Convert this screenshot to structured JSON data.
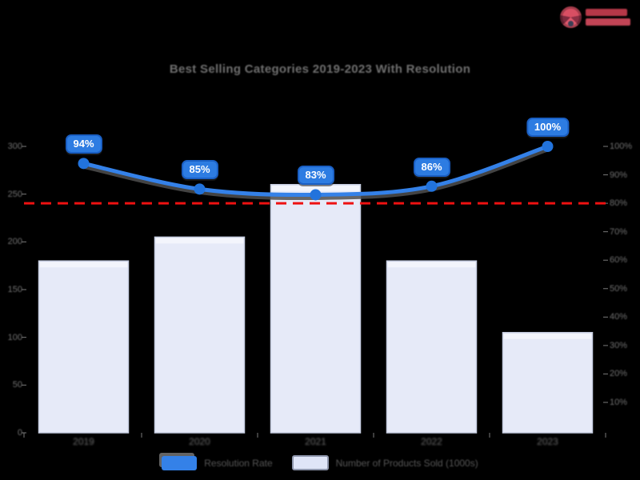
{
  "colors": {
    "background": "#000000",
    "line_blue": "#3481e8",
    "marker_blue": "#2273dc",
    "badge_fill": "#2d7ce2",
    "badge_border": "#1a5fc4",
    "bar_fill": "#e6eaf8",
    "bar_border": "#c6cde1",
    "target_red": "#ee1111",
    "muted_text": "#6f6f6f",
    "logo_red": "#b63848"
  },
  "logo": {
    "accent": "#d94f63"
  },
  "chart_data": {
    "type": "bar+line",
    "title": "Best Selling Categories 2019-2023 With Resolution",
    "categories": [
      "2019",
      "2020",
      "2021",
      "2022",
      "2023"
    ],
    "series": [
      {
        "name": "Resolution Rate",
        "chart": "line",
        "axis": "right",
        "values": [
          94,
          85,
          83,
          86,
          100
        ],
        "point_labels": [
          "94%",
          "85%",
          "83%",
          "86%",
          "100%"
        ],
        "color": "#3481e8"
      },
      {
        "name": "Number of Products Sold (1000s)",
        "chart": "bar",
        "axis": "left",
        "values": [
          180,
          205,
          260,
          180,
          105
        ],
        "color": "#e6eaf8"
      }
    ],
    "left_axis": {
      "min": 0,
      "max": 300,
      "ticks": [
        "300",
        "250",
        "200",
        "150",
        "100",
        "50",
        "0"
      ]
    },
    "right_axis": {
      "min": 10,
      "max": 100,
      "ticks": [
        "100%",
        "90%",
        "80%",
        "70%",
        "60%",
        "50%",
        "40%",
        "30%",
        "20%",
        "10%"
      ]
    },
    "target_line": {
      "axis": "right",
      "value": 80,
      "color": "#ee1111",
      "style": "dashed"
    },
    "legend": [
      "Resolution Rate",
      "Number of Products Sold (1000s)"
    ],
    "legend_position": "bottom",
    "grid": false,
    "background": "#000000"
  }
}
